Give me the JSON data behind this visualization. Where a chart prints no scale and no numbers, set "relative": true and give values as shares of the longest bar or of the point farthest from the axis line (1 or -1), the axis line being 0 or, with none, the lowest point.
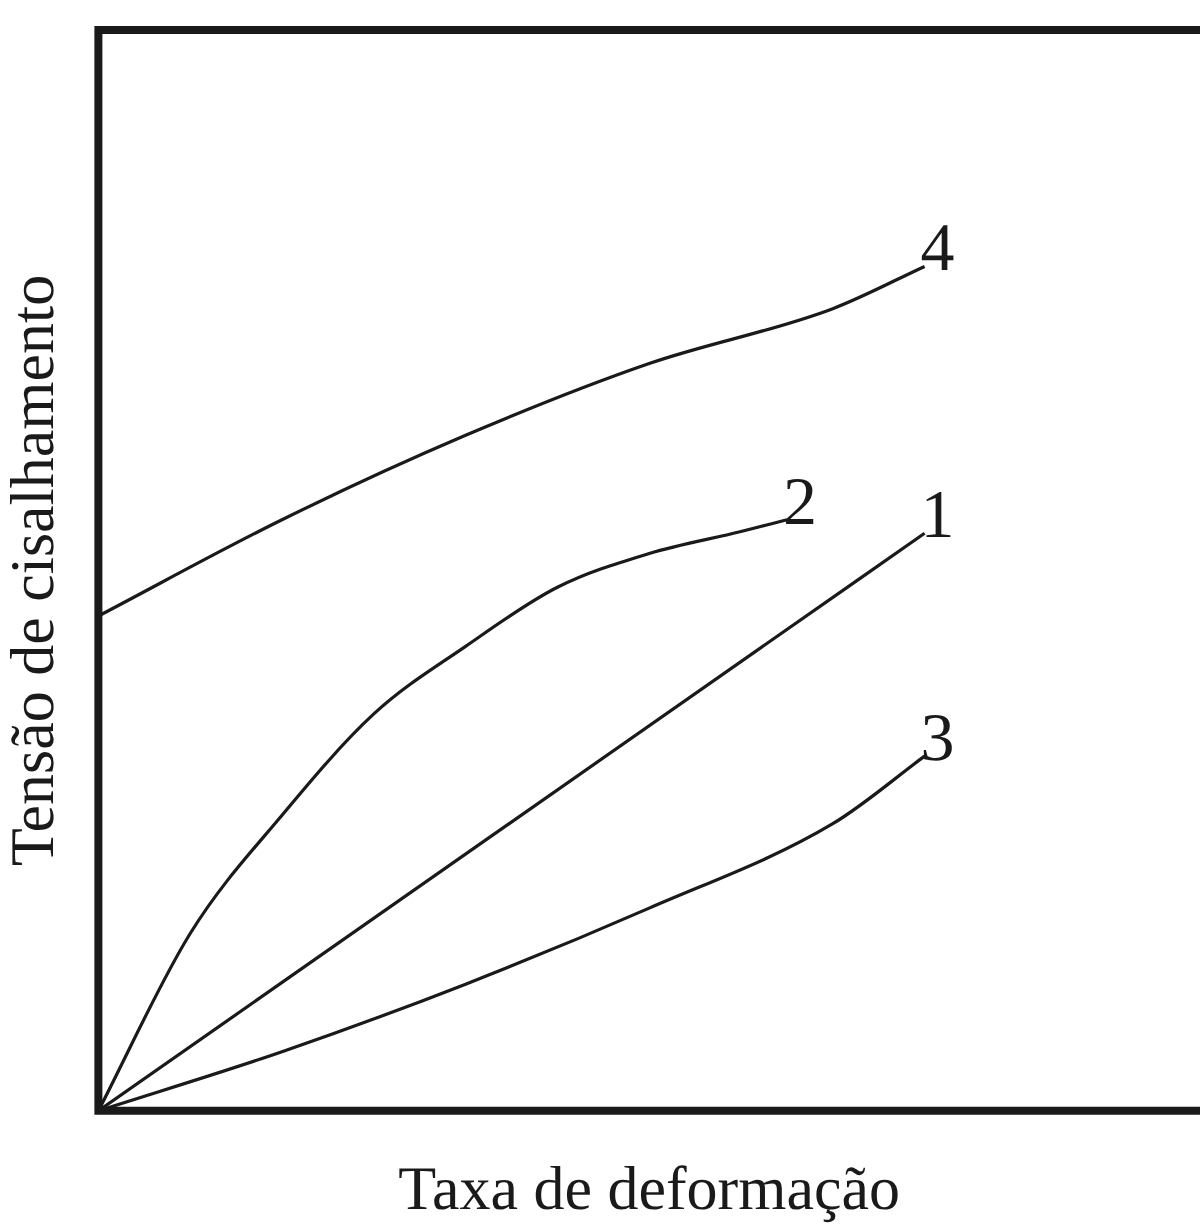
{
  "chart_data": {
    "type": "line",
    "relative": true,
    "xlabel": "Taxa de deformação",
    "ylabel": "Tensão de cisalhamento",
    "categories": [
      null,
      null,
      null,
      null,
      null,
      null,
      null,
      null,
      null,
      null,
      null,
      null,
      null,
      null,
      null,
      null,
      null,
      null,
      null,
      null,
      null,
      null,
      null,
      null,
      null
    ],
    "series": [
      {
        "name": "1",
        "color": "#1a1a1a",
        "values": [
          0,
          null,
          null,
          null,
          null,
          null,
          null,
          null,
          null,
          null,
          null,
          null,
          null,
          null,
          null,
          null,
          null,
          null,
          0.684,
          null,
          null,
          null,
          null,
          null,
          null
        ]
      },
      {
        "name": "2",
        "color": "#1a1a1a",
        "values": [
          0,
          null,
          0.21,
          null,
          0.35,
          null,
          0.47,
          null,
          0.55,
          null,
          0.62,
          null,
          0.66,
          null,
          0.686,
          0.7,
          null,
          null,
          null,
          null,
          null,
          null,
          null,
          null,
          null
        ]
      },
      {
        "name": "3",
        "color": "#1a1a1a",
        "values": [
          0,
          null,
          null,
          null,
          0.07,
          null,
          null,
          null,
          0.15,
          null,
          null,
          null,
          0.24,
          null,
          null,
          null,
          0.34,
          null,
          0.42,
          null,
          null,
          null,
          null,
          null,
          null
        ]
      },
      {
        "name": "4",
        "color": "#1a1a1a",
        "values": [
          0.586,
          null,
          null,
          null,
          0.7,
          null,
          null,
          null,
          0.8,
          null,
          null,
          null,
          0.885,
          null,
          null,
          null,
          0.95,
          null,
          1.0,
          null,
          null,
          null,
          null,
          null,
          null
        ]
      }
    ],
    "grid": false,
    "legend": false,
    "marker": "none",
    "line_style": "solid"
  }
}
